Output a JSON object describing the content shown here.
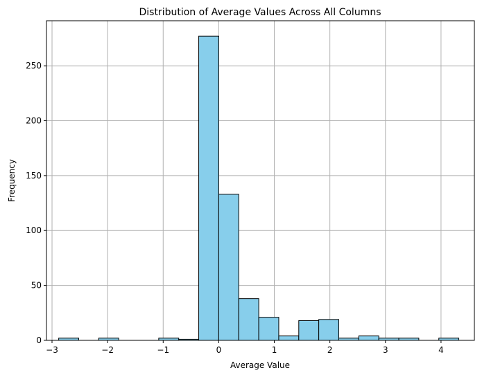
{
  "chart_data": {
    "type": "bar",
    "title": "Distribution of Average Values Across All Columns",
    "xlabel": "Average Value",
    "ylabel": "Frequency",
    "xlim": [
      -3.1,
      4.6
    ],
    "ylim": [
      0,
      291
    ],
    "xticks": [
      -3,
      -2,
      -1,
      0,
      1,
      2,
      3,
      4
    ],
    "yticks": [
      0,
      50,
      100,
      150,
      200,
      250
    ],
    "grid": true,
    "bar_color": "#87CEEB",
    "edge_color": "#000000",
    "bins": [
      {
        "x0": -2.88,
        "x1": -2.52,
        "count": 2
      },
      {
        "x0": -2.52,
        "x1": -2.16,
        "count": 0
      },
      {
        "x0": -2.16,
        "x1": -1.8,
        "count": 2
      },
      {
        "x0": -1.8,
        "x1": -1.44,
        "count": 0
      },
      {
        "x0": -1.44,
        "x1": -1.08,
        "count": 0
      },
      {
        "x0": -1.08,
        "x1": -0.72,
        "count": 2
      },
      {
        "x0": -0.72,
        "x1": -0.36,
        "count": 1
      },
      {
        "x0": -0.36,
        "x1": 0.0,
        "count": 277
      },
      {
        "x0": 0.0,
        "x1": 0.36,
        "count": 133
      },
      {
        "x0": 0.36,
        "x1": 0.72,
        "count": 38
      },
      {
        "x0": 0.72,
        "x1": 1.08,
        "count": 21
      },
      {
        "x0": 1.08,
        "x1": 1.44,
        "count": 4
      },
      {
        "x0": 1.44,
        "x1": 1.8,
        "count": 18
      },
      {
        "x0": 1.8,
        "x1": 2.16,
        "count": 19
      },
      {
        "x0": 2.16,
        "x1": 2.52,
        "count": 2
      },
      {
        "x0": 2.52,
        "x1": 2.88,
        "count": 4
      },
      {
        "x0": 2.88,
        "x1": 3.24,
        "count": 2
      },
      {
        "x0": 3.24,
        "x1": 3.6,
        "count": 2
      },
      {
        "x0": 3.6,
        "x1": 3.96,
        "count": 0
      },
      {
        "x0": 3.96,
        "x1": 4.32,
        "count": 2
      }
    ]
  }
}
